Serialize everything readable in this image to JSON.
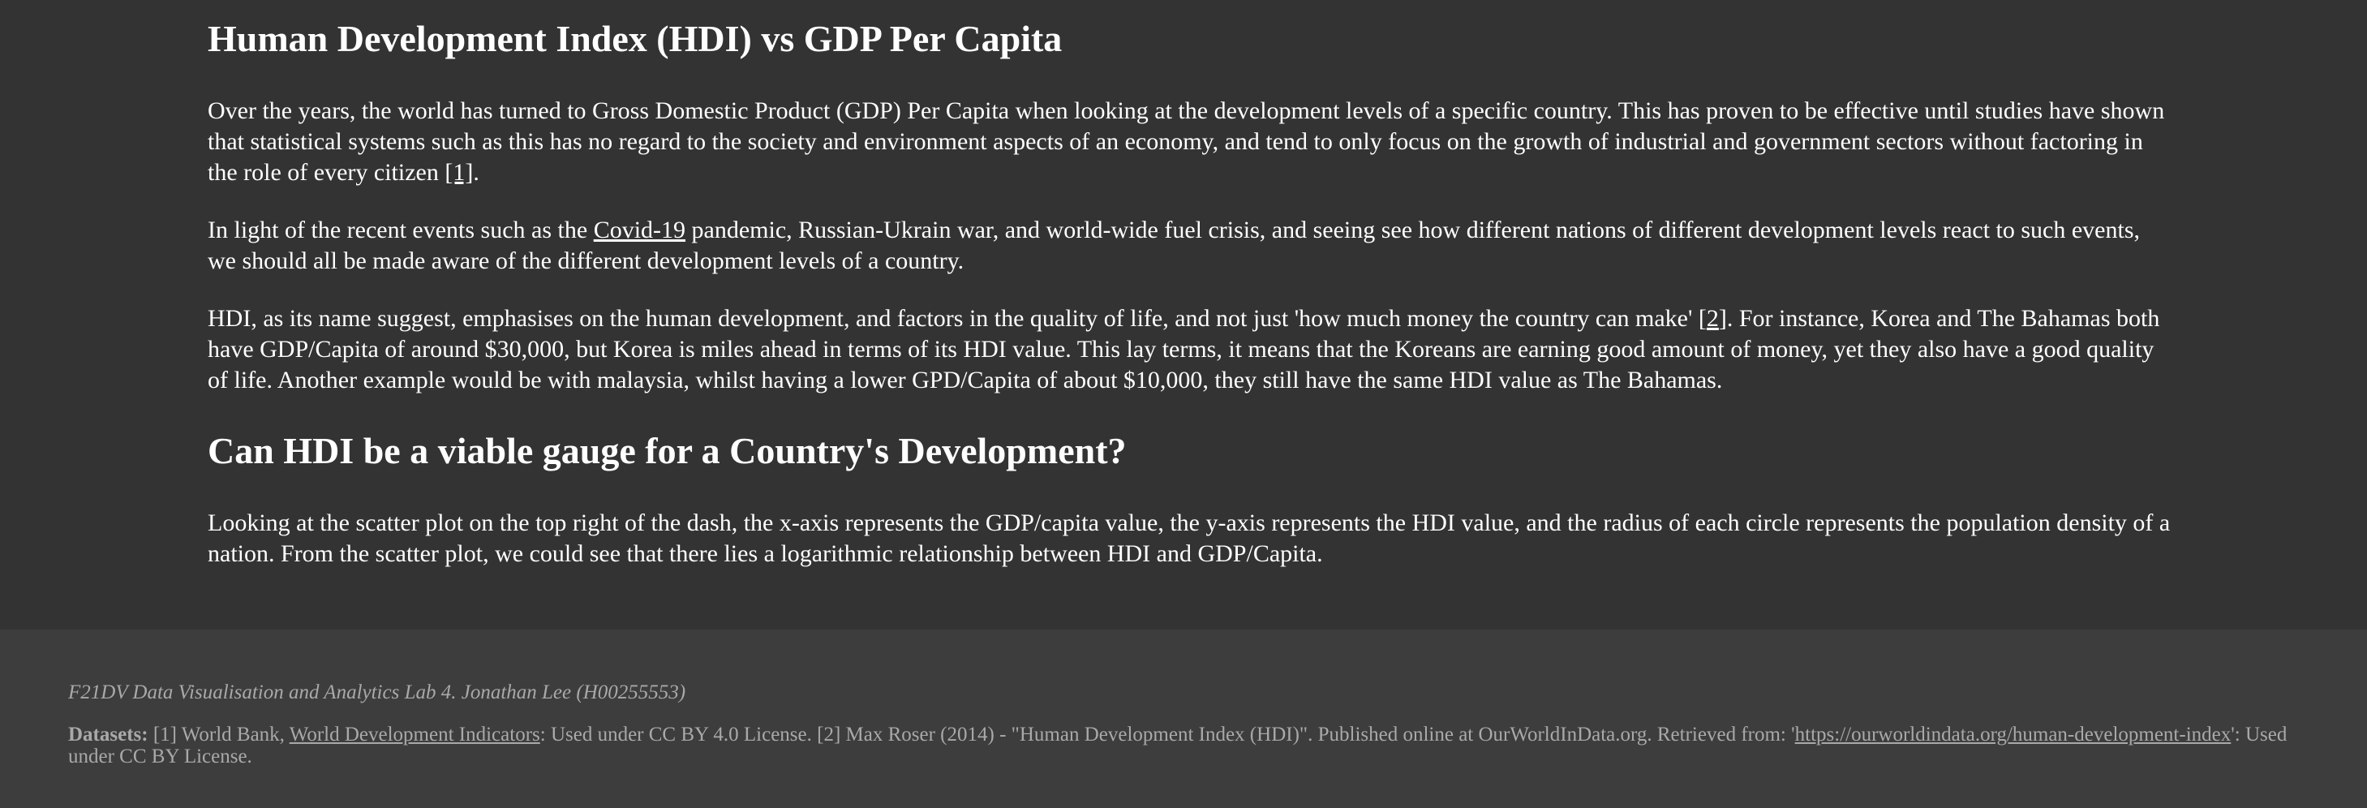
{
  "main": {
    "title1": "Human Development Index (HDI) vs GDP Per Capita",
    "p1": {
      "text": "Over the years, the world has turned to Gross Domestic Product (GDP) Per Capita when looking at the development levels of a specific country. This has proven to be effective until studies have shown that statistical systems such as this has no regard to the society and environment aspects of an economy, and tend to only focus on the growth of industrial and government sectors without factoring in the role of every citizen ",
      "ref": "[1]",
      "end": "."
    },
    "p2": {
      "before": "In light of the recent events such as the ",
      "link": "Covid-19",
      "after": " pandemic, Russian-Ukrain war, and world-wide fuel crisis, and seeing see how different nations of different development levels react to such events, we should all be made aware of the different development levels of a country."
    },
    "p3": {
      "before": "HDI, as its name suggest, emphasises on the human development, and factors in the quality of life, and not just 'how much money the country can make' [",
      "ref": "2",
      "after": "]. For instance, Korea and The Bahamas both have GDP/Capita of around $30,000, but Korea is miles ahead in terms of its HDI value. This lay terms, it means that the Koreans are earning good amount of money, yet they also have a good quality of life. Another example would be with malaysia, whilst having a lower GPD/Capita of about $10,000, they still have the same HDI value as The Bahamas."
    },
    "title2": "Can HDI be a viable gauge for a Country's Development?",
    "p4": "Looking at the scatter plot on the top right of the dash, the x-axis represents the GDP/capita value, the y-axis represents the HDI value, and the radius of each circle represents the population density of a nation. From the scatter plot, we could see that there lies a logarithmic relationship between HDI and GDP/Capita."
  },
  "footer": {
    "credit": "F21DV Data Visualisation and Analytics Lab 4. Jonathan Lee (H00255553)",
    "datasets_label": "Datasets:",
    "ds_part1": " [1] World Bank, ",
    "ds_link1": "World Development Indicators",
    "ds_part2": ": Used under CC BY 4.0 License. [2] Max Roser (2014) - \"Human Development Index (HDI)\". Published online at OurWorldInData.org. Retrieved from: '",
    "ds_link2": "https://ourworldindata.org/human-development-index",
    "ds_part3": "': Used under CC BY License."
  },
  "colors": {
    "background": "#333333",
    "footer_background": "#3d3d3d",
    "footer_text": "#a9a9a9"
  }
}
